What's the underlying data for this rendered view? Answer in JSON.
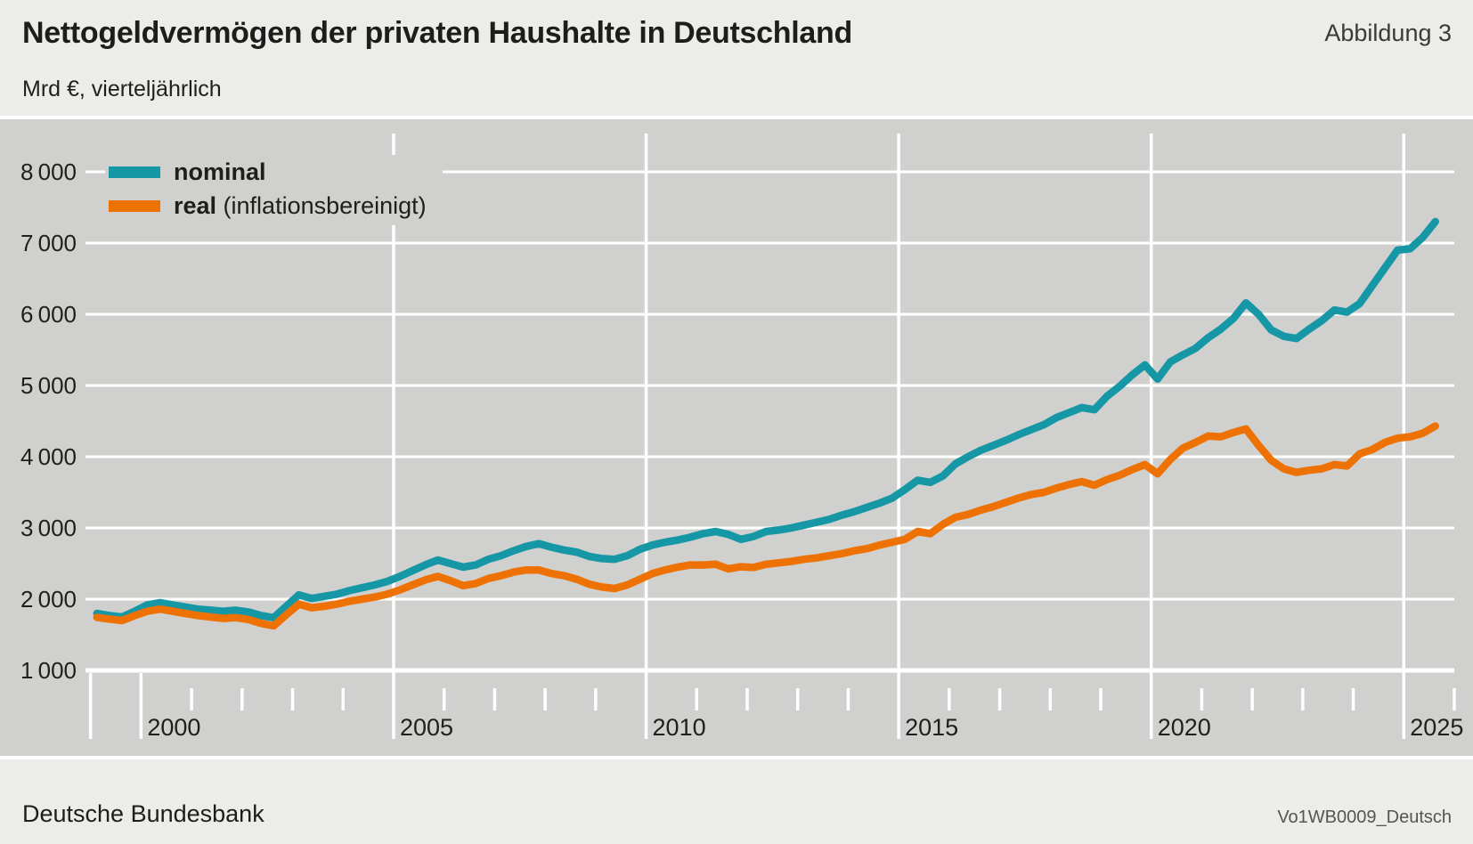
{
  "meta": {
    "title": "Nettogeldvermögen der privaten Haushalte in Deutschland",
    "figure_label": "Abbildung 3",
    "subtitle": "Mrd €, vierteljährlich",
    "source": "Deutsche Bundesbank",
    "code": "Vo1WB0009_Deutsch"
  },
  "legend": {
    "items": [
      {
        "label_bold": "nominal",
        "label_rest": "",
        "color": "#1697a6"
      },
      {
        "label_bold": "real",
        "label_rest": " (inflationsbereinigt)",
        "color": "#ee7203"
      }
    ]
  },
  "colors": {
    "page_bg": "#ececeb",
    "plot_bg": "#d0d0ce",
    "grid": "#ffffff",
    "axis_text": "#1f1f1d"
  },
  "chart_data": {
    "type": "line",
    "title": "Nettogeldvermögen der privaten Haushalte in Deutschland",
    "ylabel": "Mrd €",
    "frequency": "vierteljährlich",
    "x_start": 1999.125,
    "x_step": 0.25,
    "x_axis_start_year": 1999,
    "x_axis_end_year": 2026,
    "x_ticks_labeled": [
      2000,
      2005,
      2010,
      2015,
      2020,
      2025
    ],
    "x_gridline_years": [
      2005,
      2010,
      2015,
      2020,
      2025
    ],
    "ylim": [
      1000,
      8000
    ],
    "y_ticks": [
      1000,
      2000,
      3000,
      4000,
      5000,
      6000,
      7000,
      8000
    ],
    "y_tick_labels": [
      "1 000",
      "2 000",
      "3 000",
      "4 000",
      "5 000",
      "6 000",
      "7 000",
      "8 000"
    ],
    "grid": true,
    "legend_position": "top-left",
    "series": [
      {
        "name": "nominal",
        "color": "#1697a6",
        "values": [
          1800,
          1770,
          1750,
          1830,
          1920,
          1950,
          1920,
          1890,
          1860,
          1845,
          1830,
          1845,
          1820,
          1770,
          1740,
          1900,
          2060,
          2010,
          2040,
          2070,
          2120,
          2160,
          2200,
          2250,
          2320,
          2400,
          2480,
          2550,
          2500,
          2450,
          2480,
          2560,
          2610,
          2680,
          2740,
          2780,
          2730,
          2690,
          2660,
          2600,
          2570,
          2560,
          2610,
          2700,
          2760,
          2800,
          2830,
          2870,
          2920,
          2950,
          2910,
          2840,
          2880,
          2950,
          2970,
          3000,
          3040,
          3080,
          3120,
          3180,
          3230,
          3290,
          3350,
          3420,
          3540,
          3670,
          3640,
          3730,
          3900,
          4000,
          4090,
          4160,
          4230,
          4310,
          4380,
          4450,
          4550,
          4620,
          4690,
          4660,
          4850,
          4990,
          5150,
          5290,
          5090,
          5330,
          5430,
          5520,
          5670,
          5790,
          5940,
          6160,
          6000,
          5780,
          5690,
          5660,
          5790,
          5910,
          6060,
          6030,
          6150,
          6400,
          6650,
          6900,
          6920,
          7080,
          7300
        ]
      },
      {
        "name": "real (inflationsbereinigt)",
        "color": "#ee7203",
        "values": [
          1745,
          1720,
          1700,
          1770,
          1830,
          1860,
          1830,
          1800,
          1770,
          1750,
          1730,
          1740,
          1715,
          1660,
          1625,
          1780,
          1930,
          1880,
          1900,
          1930,
          1970,
          2000,
          2030,
          2070,
          2130,
          2200,
          2270,
          2320,
          2260,
          2190,
          2220,
          2290,
          2330,
          2380,
          2410,
          2410,
          2360,
          2330,
          2280,
          2210,
          2170,
          2150,
          2200,
          2280,
          2360,
          2410,
          2450,
          2480,
          2480,
          2490,
          2425,
          2455,
          2445,
          2490,
          2510,
          2530,
          2560,
          2580,
          2610,
          2640,
          2680,
          2710,
          2760,
          2800,
          2840,
          2950,
          2920,
          3050,
          3150,
          3190,
          3250,
          3300,
          3360,
          3420,
          3470,
          3500,
          3560,
          3610,
          3650,
          3600,
          3680,
          3740,
          3820,
          3890,
          3760,
          3960,
          4120,
          4200,
          4290,
          4280,
          4340,
          4390,
          4160,
          3950,
          3830,
          3780,
          3810,
          3830,
          3890,
          3870,
          4040,
          4100,
          4200,
          4260,
          4280,
          4330,
          4430
        ]
      }
    ]
  }
}
